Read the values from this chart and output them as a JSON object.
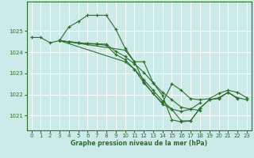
{
  "bg_color": "#cceae7",
  "grid_color": "#ffffff",
  "line_color": "#2d6e2d",
  "xlabel": "Graphe pression niveau de la mer (hPa)",
  "xlim": [
    -0.5,
    23.5
  ],
  "ylim": [
    1020.3,
    1026.4
  ],
  "yticks": [
    1021,
    1022,
    1023,
    1024,
    1025
  ],
  "xticks": [
    0,
    1,
    2,
    3,
    4,
    5,
    6,
    7,
    8,
    9,
    10,
    11,
    12,
    13,
    14,
    15,
    16,
    17,
    18,
    19,
    20,
    21,
    22,
    23
  ],
  "s1_x": [
    0,
    1,
    2,
    3,
    4,
    5,
    6,
    7,
    8,
    9,
    10,
    11,
    12,
    13,
    14,
    15,
    16,
    17,
    18,
    19,
    20,
    21,
    22
  ],
  "s1_y": [
    1024.7,
    1024.7,
    1024.45,
    1024.55,
    1025.2,
    1025.45,
    1025.75,
    1025.75,
    1025.75,
    1025.1,
    1024.2,
    1023.55,
    1023.55,
    1022.55,
    1021.95,
    1020.8,
    1020.7,
    1020.75,
    1021.35,
    1021.75,
    1021.8,
    1022.1,
    1021.8
  ],
  "s2_x": [
    3,
    4,
    5,
    6,
    7,
    8,
    9,
    10,
    11,
    12,
    13,
    14,
    15,
    16,
    17,
    18
  ],
  "s2_y": [
    1024.55,
    1024.5,
    1024.45,
    1024.42,
    1024.4,
    1024.38,
    1024.05,
    1023.8,
    1023.45,
    1023.05,
    1022.55,
    1022.1,
    1021.75,
    1021.4,
    1021.3,
    1021.25
  ],
  "s3_x": [
    3,
    4,
    5,
    6,
    7,
    8,
    9,
    10,
    11,
    12,
    13,
    14,
    15,
    16,
    17,
    18
  ],
  "s3_y": [
    1024.55,
    1024.5,
    1024.45,
    1024.4,
    1024.38,
    1024.33,
    1023.9,
    1023.65,
    1023.2,
    1022.7,
    1022.2,
    1021.7,
    1021.3,
    1021.2,
    1021.3,
    1021.6
  ],
  "s4_x": [
    3,
    10,
    11,
    12,
    13,
    14,
    15,
    16,
    17,
    18,
    19,
    20,
    21,
    22,
    23
  ],
  "s4_y": [
    1024.55,
    1024.1,
    1023.55,
    1022.6,
    1022.05,
    1021.55,
    1021.3,
    1020.75,
    1020.75,
    1021.35,
    1021.75,
    1021.85,
    1022.1,
    1021.85,
    1021.75
  ],
  "s5_x": [
    3,
    10,
    11,
    12,
    13,
    14,
    15,
    16,
    17,
    18,
    19,
    20,
    21,
    22,
    23
  ],
  "s5_y": [
    1024.55,
    1023.55,
    1023.2,
    1022.55,
    1022.05,
    1021.6,
    1022.5,
    1022.2,
    1021.8,
    1021.75,
    1021.8,
    1022.05,
    1022.2,
    1022.1,
    1021.85
  ]
}
